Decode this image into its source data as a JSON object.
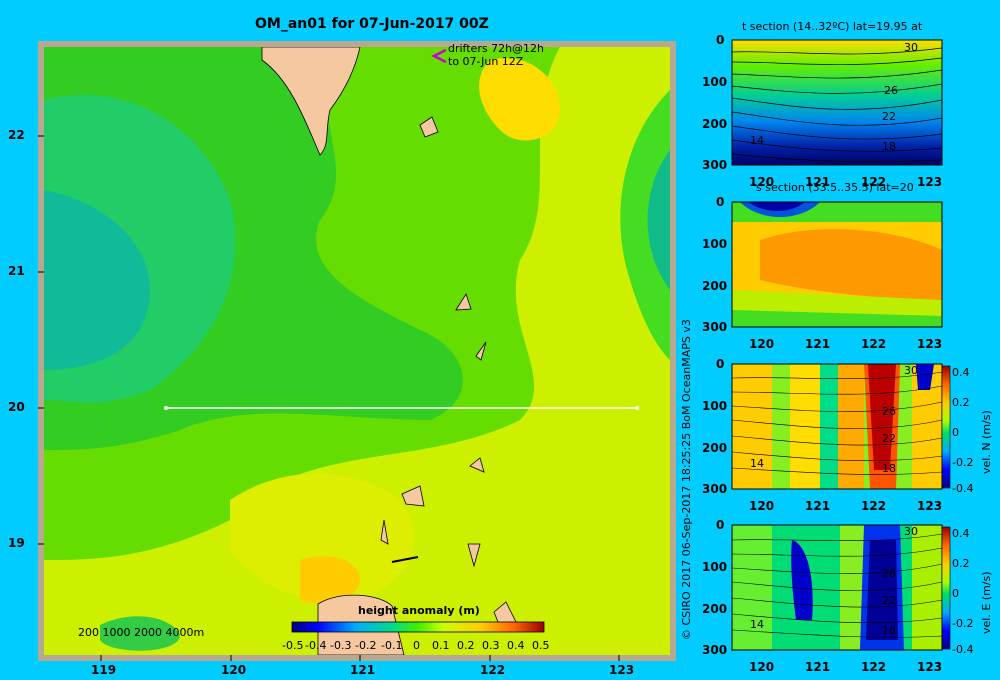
{
  "main_map": {
    "title": "OM_an01 for 07-Jun-2017 00Z",
    "drifter_text_1": "drifters 72h@12h",
    "drifter_text_2": "to 07-Jun 12Z",
    "lon_ticks": [
      "119",
      "120",
      "121",
      "122",
      "123"
    ],
    "lat_ticks": [
      "22",
      "21",
      "20",
      "19"
    ],
    "depth_legend": "200  1000  2000  4000m",
    "colorbar_label": "height anomaly  (m)",
    "colorbar_ticks": [
      "-0.5",
      "-0.4",
      "-0.3",
      "-0.2",
      "-0.1",
      "0",
      "0.1",
      "0.2",
      "0.3",
      "0.4",
      "0.5"
    ],
    "section_line": {
      "lat": 20,
      "lon_start": 119.5,
      "lon_end": 123.2
    }
  },
  "credit": "© CSIRO 2017   06-Sep-2017 18:25:25 BoM OceanMAPS v3",
  "panels": [
    {
      "id": "temp",
      "title": "t section (14..32ºC) lat=19.95 at",
      "x_ticks": [
        "120",
        "121",
        "122",
        "123"
      ],
      "y_ticks": [
        "0",
        "100",
        "200",
        "300"
      ],
      "contour_labels": [
        "30",
        "26",
        "22",
        "18",
        "14"
      ]
    },
    {
      "id": "salt",
      "title": "s section (33.5..35.5) lat=20",
      "x_ticks": [
        "120",
        "121",
        "122",
        "123"
      ],
      "y_ticks": [
        "0",
        "100",
        "200",
        "300"
      ]
    },
    {
      "id": "veln",
      "title": "",
      "x_ticks": [
        "120",
        "121",
        "122",
        "123"
      ],
      "y_ticks": [
        "0",
        "100",
        "200",
        "300"
      ],
      "contour_labels": [
        "30",
        "26",
        "22",
        "18",
        "14"
      ],
      "colorbar_label": "vel. N (m/s)",
      "colorbar_ticks": [
        "0.4",
        "0.2",
        "0",
        "-0.2",
        "-0.4"
      ]
    },
    {
      "id": "vele",
      "title": "",
      "x_ticks": [
        "120",
        "121",
        "122",
        "123"
      ],
      "y_ticks": [
        "0",
        "100",
        "200",
        "300"
      ],
      "contour_labels": [
        "30",
        "26",
        "22",
        "18",
        "14"
      ],
      "colorbar_label": "vel. E (m/s)",
      "colorbar_ticks": [
        "0.4",
        "0.2",
        "0",
        "-0.2",
        "-0.4"
      ]
    }
  ],
  "chart_data": [
    {
      "type": "heatmap",
      "title": "OM_an01 for 07-Jun-2017 00Z",
      "xlabel": "",
      "ylabel": "",
      "xlim": [
        118.5,
        123.5
      ],
      "ylim": [
        18.3,
        22.7
      ],
      "value_label": "height anomaly (m)",
      "value_range": [
        -0.5,
        0.5
      ]
    },
    {
      "type": "heatmap",
      "title": "t section (14..32ºC) lat=19.95 at",
      "xlim": [
        119.6,
        123.2
      ],
      "ylim": [
        300,
        0
      ]
    },
    {
      "type": "heatmap",
      "title": "s section (33.5..35.5) lat=20",
      "xlim": [
        119.6,
        123.2
      ],
      "ylim": [
        300,
        0
      ]
    },
    {
      "type": "heatmap",
      "title": "",
      "xlim": [
        119.6,
        123.2
      ],
      "ylim": [
        300,
        0
      ],
      "value_label": "vel. N (m/s)",
      "value_range": [
        -0.4,
        0.4
      ]
    },
    {
      "type": "heatmap",
      "title": "",
      "xlim": [
        119.6,
        123.2
      ],
      "ylim": [
        300,
        0
      ],
      "value_label": "vel. E (m/s)",
      "value_range": [
        -0.4,
        0.4
      ]
    }
  ],
  "colors": {
    "background": "#00ccff",
    "frame": "#b8a890",
    "land": "#f5c8a0"
  }
}
